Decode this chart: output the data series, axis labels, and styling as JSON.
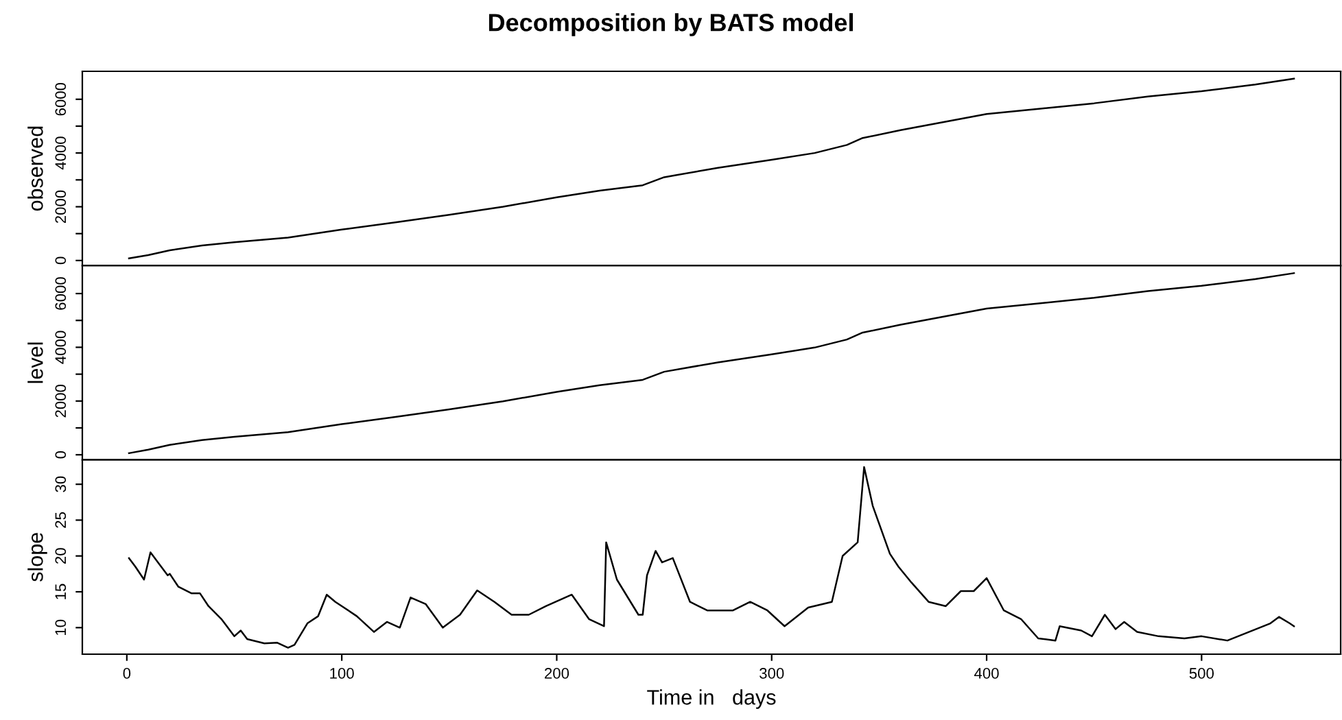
{
  "chart_data": [
    {
      "type": "line",
      "title": "Decomposition by BATS model",
      "ylabel": "observed",
      "color": "#000000",
      "tick_labels": "y",
      "xlim": [
        -20.7,
        564.7
      ],
      "ylim": [
        -190,
        7040
      ],
      "yticks": [
        0,
        {
          "value": 1000,
          "label": null
        },
        2000,
        {
          "value": 3000,
          "label": null
        },
        4000,
        {
          "value": 5000,
          "label": null
        },
        6000
      ],
      "x": [
        1,
        10,
        20,
        35,
        50,
        75,
        100,
        125,
        150,
        175,
        200,
        220,
        240,
        250,
        275,
        300,
        320,
        335,
        342,
        360,
        380,
        400,
        425,
        450,
        475,
        500,
        525,
        543
      ],
      "values": [
        80,
        200,
        380,
        560,
        680,
        850,
        1150,
        1420,
        1700,
        2000,
        2350,
        2600,
        2800,
        3100,
        3450,
        3750,
        4000,
        4300,
        4550,
        4850,
        5150,
        5450,
        5650,
        5850,
        6100,
        6300,
        6550,
        6770
      ]
    },
    {
      "type": "line",
      "ylabel": "level",
      "color": "#000000",
      "tick_labels": "y",
      "xlim": [
        -20.7,
        564.7
      ],
      "ylim": [
        -190,
        7040
      ],
      "yticks": [
        0,
        {
          "value": 1000,
          "label": null
        },
        2000,
        {
          "value": 3000,
          "label": null
        },
        4000,
        {
          "value": 5000,
          "label": null
        },
        6000
      ],
      "x": [
        1,
        10,
        20,
        35,
        50,
        75,
        100,
        125,
        150,
        175,
        200,
        220,
        240,
        250,
        275,
        300,
        320,
        335,
        342,
        360,
        380,
        400,
        425,
        450,
        475,
        500,
        525,
        543
      ],
      "values": [
        60,
        190,
        370,
        550,
        670,
        840,
        1140,
        1410,
        1690,
        1990,
        2340,
        2590,
        2790,
        3090,
        3440,
        3740,
        3990,
        4290,
        4540,
        4840,
        5140,
        5440,
        5640,
        5840,
        6090,
        6290,
        6540,
        6760
      ]
    },
    {
      "type": "line",
      "ylabel": "slope",
      "xlabel": "Time in   days",
      "color": "#000000",
      "xlim": [
        -20.7,
        564.7
      ],
      "xticks": [
        0,
        100,
        200,
        300,
        400,
        500
      ],
      "ylim": [
        6.3,
        33.4
      ],
      "yticks": [
        10,
        15,
        20,
        25,
        30
      ],
      "x": [
        1,
        4,
        8,
        11,
        16,
        19,
        20,
        24,
        30,
        34,
        38,
        44,
        50,
        53,
        56,
        64,
        70,
        75,
        78,
        84,
        89,
        93,
        97,
        107,
        115,
        121,
        127,
        132,
        139,
        147,
        155,
        163,
        171,
        179,
        187,
        195,
        207,
        215,
        222,
        223,
        228,
        238,
        240,
        242,
        246,
        249,
        254,
        262,
        270,
        282,
        290,
        298,
        306,
        317,
        328,
        333,
        340,
        343,
        347,
        355,
        359,
        365,
        373,
        381,
        388,
        394,
        400,
        408,
        416,
        424,
        432,
        434,
        444,
        449,
        455,
        460,
        464,
        470,
        480,
        492,
        500,
        512,
        522,
        532,
        536,
        541,
        543
      ],
      "values": [
        19.7,
        18.5,
        16.7,
        20.5,
        18.5,
        17.3,
        17.5,
        15.7,
        14.8,
        14.8,
        13,
        11.2,
        8.8,
        9.6,
        8.4,
        7.8,
        7.9,
        7.2,
        7.6,
        10.6,
        11.6,
        14.6,
        13.6,
        11.6,
        9.4,
        10.8,
        10,
        14.2,
        13.3,
        10,
        11.8,
        15.2,
        13.6,
        11.8,
        11.8,
        13,
        14.6,
        11.2,
        10.2,
        21.9,
        16.7,
        11.8,
        11.8,
        17.3,
        20.7,
        19.1,
        19.7,
        13.6,
        12.4,
        12.4,
        13.6,
        12.4,
        10.2,
        12.8,
        13.6,
        20,
        21.9,
        32.4,
        27,
        20.3,
        18.5,
        16.3,
        13.6,
        13,
        15.1,
        15.1,
        16.9,
        12.4,
        11.2,
        8.5,
        8.2,
        10.2,
        9.6,
        8.8,
        11.8,
        9.8,
        10.8,
        9.4,
        8.8,
        8.5,
        8.8,
        8.2,
        9.4,
        10.6,
        11.5,
        10.6,
        10.2
      ]
    }
  ]
}
